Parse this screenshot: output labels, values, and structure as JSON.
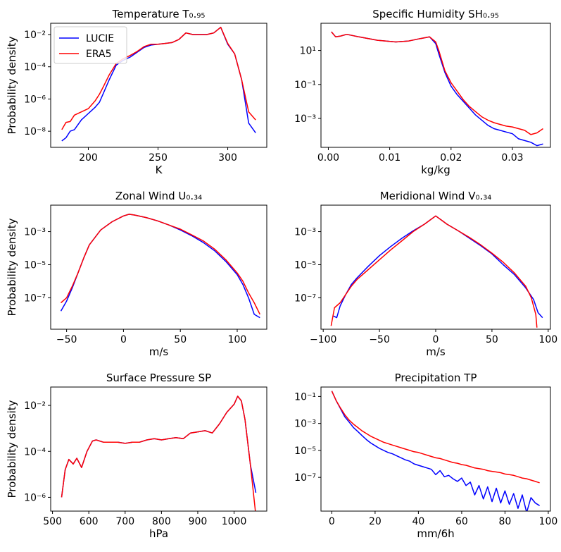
{
  "figure": {
    "legend_labels": [
      "LUCIE",
      "ERA5"
    ],
    "series_colors": {
      "LUCIE": "#0000ff",
      "ERA5": "#ff0000"
    }
  },
  "chart_data": [
    {
      "type": "line",
      "title": "Temperature T₀.₉₅",
      "xlabel": "K",
      "ylabel": "Probability density",
      "yscale": "log",
      "xlim": [
        173,
        328
      ],
      "ylim_exp": [
        -9,
        -1.3
      ],
      "xticks": [
        200,
        250,
        300
      ],
      "yticks_exp": [
        -8,
        -6,
        -4,
        -2
      ],
      "legend": "upper-left",
      "series": [
        {
          "name": "LUCIE",
          "color": "#0000ff",
          "x": [
            181,
            184,
            187,
            190,
            195,
            200,
            205,
            208,
            211,
            215,
            220,
            225,
            230,
            235,
            240,
            245,
            250,
            255,
            260,
            265,
            270,
            275,
            280,
            285,
            290,
            295,
            300,
            305,
            310,
            315,
            320
          ],
          "y_exp": [
            -8.6,
            -8.4,
            -8.0,
            -7.9,
            -7.3,
            -6.9,
            -6.5,
            -6.2,
            -5.6,
            -4.8,
            -3.9,
            -3.6,
            -3.4,
            -3.1,
            -2.8,
            -2.65,
            -2.6,
            -2.55,
            -2.5,
            -2.3,
            -1.9,
            -2.0,
            -2.0,
            -2.0,
            -1.9,
            -1.55,
            -2.6,
            -3.2,
            -4.8,
            -7.5,
            -8.1
          ]
        },
        {
          "name": "ERA5",
          "color": "#ff0000",
          "x": [
            181,
            184,
            187,
            190,
            195,
            200,
            205,
            208,
            211,
            215,
            220,
            225,
            230,
            235,
            240,
            245,
            250,
            255,
            260,
            265,
            270,
            275,
            280,
            285,
            290,
            295,
            300,
            305,
            310,
            315,
            320
          ],
          "y_exp": [
            -7.9,
            -7.45,
            -7.4,
            -7.0,
            -6.8,
            -6.6,
            -6.1,
            -5.7,
            -5.2,
            -4.5,
            -3.8,
            -3.5,
            -3.3,
            -3.05,
            -2.75,
            -2.6,
            -2.6,
            -2.55,
            -2.5,
            -2.3,
            -1.9,
            -2.0,
            -2.0,
            -2.0,
            -1.9,
            -1.55,
            -2.55,
            -3.2,
            -4.8,
            -6.8,
            -7.3
          ]
        }
      ]
    },
    {
      "type": "line",
      "title": "Specific Humidity SH₀.₉₅",
      "xlabel": "kg/kg",
      "ylabel": "",
      "yscale": "log",
      "xlim": [
        -0.0012,
        0.0362
      ],
      "ylim_exp": [
        -4.7,
        2.6
      ],
      "xticks": [
        0.0,
        0.01,
        0.02,
        0.03
      ],
      "xtick_labels": [
        "0.00",
        "0.01",
        "0.02",
        "0.03"
      ],
      "yticks_exp": [
        -3,
        -1,
        1
      ],
      "series": [
        {
          "name": "LUCIE",
          "color": "#0000ff",
          "x": [
            0.0005,
            0.0012,
            0.002,
            0.003,
            0.005,
            0.008,
            0.011,
            0.013,
            0.015,
            0.0165,
            0.0175,
            0.018,
            0.019,
            0.02,
            0.021,
            0.022,
            0.023,
            0.024,
            0.025,
            0.026,
            0.027,
            0.028,
            0.029,
            0.03,
            0.031,
            0.032,
            0.033,
            0.034,
            0.035
          ],
          "y_exp": [
            2.1,
            1.8,
            1.85,
            1.95,
            1.8,
            1.6,
            1.5,
            1.55,
            1.7,
            1.8,
            1.4,
            0.8,
            -0.3,
            -1.1,
            -1.6,
            -2.0,
            -2.4,
            -2.8,
            -3.1,
            -3.4,
            -3.6,
            -3.7,
            -3.8,
            -3.9,
            -4.2,
            -4.3,
            -4.4,
            -4.6,
            -4.5
          ]
        },
        {
          "name": "ERA5",
          "color": "#ff0000",
          "x": [
            0.0005,
            0.0012,
            0.002,
            0.003,
            0.005,
            0.008,
            0.011,
            0.013,
            0.015,
            0.0165,
            0.0175,
            0.018,
            0.019,
            0.02,
            0.021,
            0.022,
            0.023,
            0.024,
            0.025,
            0.026,
            0.027,
            0.028,
            0.029,
            0.03,
            0.031,
            0.032,
            0.033,
            0.034,
            0.035
          ],
          "y_exp": [
            2.1,
            1.8,
            1.85,
            1.95,
            1.8,
            1.6,
            1.5,
            1.55,
            1.7,
            1.8,
            1.5,
            1.0,
            -0.2,
            -0.9,
            -1.4,
            -1.9,
            -2.3,
            -2.6,
            -2.9,
            -3.1,
            -3.25,
            -3.35,
            -3.45,
            -3.5,
            -3.6,
            -3.7,
            -3.95,
            -3.85,
            -3.6
          ]
        }
      ]
    },
    {
      "type": "line",
      "title": "Zonal Wind U₀.₃₄",
      "xlabel": "m/s",
      "ylabel": "Probability density",
      "yscale": "log",
      "xlim": [
        -64,
        126
      ],
      "ylim_exp": [
        -8.9,
        -1.4
      ],
      "xticks": [
        -50,
        0,
        50,
        100
      ],
      "xtick_labels": [
        "−50",
        "0",
        "50",
        "100"
      ],
      "yticks_exp": [
        -7,
        -5,
        -3
      ],
      "series": [
        {
          "name": "LUCIE",
          "color": "#0000ff",
          "x": [
            -55,
            -50,
            -45,
            -40,
            -35,
            -30,
            -20,
            -10,
            0,
            5,
            10,
            20,
            30,
            40,
            50,
            60,
            70,
            80,
            90,
            100,
            105,
            110,
            115,
            120
          ],
          "y_exp": [
            -7.8,
            -7.2,
            -6.4,
            -5.5,
            -4.6,
            -3.8,
            -2.9,
            -2.4,
            -2.05,
            -1.95,
            -2.0,
            -2.15,
            -2.35,
            -2.6,
            -2.9,
            -3.25,
            -3.65,
            -4.15,
            -4.8,
            -5.6,
            -6.2,
            -7.0,
            -8.0,
            -8.2
          ]
        },
        {
          "name": "ERA5",
          "color": "#ff0000",
          "x": [
            -55,
            -50,
            -45,
            -40,
            -35,
            -30,
            -20,
            -10,
            0,
            5,
            10,
            20,
            30,
            40,
            50,
            60,
            70,
            80,
            90,
            100,
            105,
            110,
            115,
            120
          ],
          "y_exp": [
            -7.3,
            -7.0,
            -6.3,
            -5.5,
            -4.6,
            -3.8,
            -2.9,
            -2.4,
            -2.05,
            -1.95,
            -2.0,
            -2.15,
            -2.35,
            -2.6,
            -2.85,
            -3.2,
            -3.55,
            -4.05,
            -4.7,
            -5.5,
            -6.0,
            -6.7,
            -7.3,
            -8.0
          ]
        }
      ]
    },
    {
      "type": "line",
      "title": "Meridional Wind V₀.₃₄",
      "xlabel": "m/s",
      "ylabel": "",
      "yscale": "log",
      "xlim": [
        -102,
        102
      ],
      "ylim_exp": [
        -8.9,
        -1.4
      ],
      "xticks": [
        -100,
        -50,
        0,
        50,
        100
      ],
      "xtick_labels": [
        "−100",
        "−50",
        "0",
        "50",
        "100"
      ],
      "yticks_exp": [
        -7,
        -5,
        -3
      ],
      "series": [
        {
          "name": "LUCIE",
          "color": "#0000ff",
          "x": [
            -91,
            -88,
            -85,
            -80,
            -75,
            -70,
            -60,
            -50,
            -40,
            -30,
            -20,
            -10,
            -5,
            0,
            5,
            10,
            20,
            30,
            40,
            50,
            60,
            70,
            80,
            87,
            91,
            95
          ],
          "y_exp": [
            -8.1,
            -8.2,
            -7.5,
            -6.8,
            -6.2,
            -5.8,
            -5.1,
            -4.45,
            -3.9,
            -3.4,
            -2.95,
            -2.55,
            -2.3,
            -2.05,
            -2.3,
            -2.55,
            -2.95,
            -3.4,
            -3.85,
            -4.35,
            -5.0,
            -5.6,
            -6.4,
            -7.1,
            -7.9,
            -8.2
          ]
        },
        {
          "name": "ERA5",
          "color": "#ff0000",
          "x": [
            -93,
            -90,
            -85,
            -80,
            -75,
            -70,
            -60,
            -50,
            -40,
            -30,
            -20,
            -10,
            -5,
            0,
            5,
            10,
            20,
            30,
            40,
            50,
            60,
            70,
            80,
            85,
            89,
            90
          ],
          "y_exp": [
            -8.7,
            -7.6,
            -7.3,
            -6.8,
            -6.3,
            -5.9,
            -5.3,
            -4.7,
            -4.1,
            -3.55,
            -3.0,
            -2.55,
            -2.3,
            -2.05,
            -2.3,
            -2.55,
            -2.95,
            -3.35,
            -3.8,
            -4.3,
            -4.85,
            -5.5,
            -6.3,
            -7.0,
            -8.0,
            -8.8
          ]
        }
      ]
    },
    {
      "type": "line",
      "title": "Surface Pressure SP",
      "xlabel": "hPa",
      "ylabel": "Probability density",
      "yscale": "log",
      "xlim": [
        495,
        1090
      ],
      "ylim_exp": [
        -6.6,
        -1.2
      ],
      "xticks": [
        500,
        600,
        700,
        800,
        900,
        1000
      ],
      "yticks_exp": [
        -6,
        -4,
        -2
      ],
      "series": [
        {
          "name": "LUCIE",
          "color": "#0000ff",
          "x": [
            525,
            535,
            545,
            557,
            567,
            580,
            595,
            610,
            620,
            640,
            660,
            680,
            700,
            720,
            740,
            760,
            780,
            800,
            820,
            840,
            860,
            880,
            900,
            920,
            940,
            960,
            980,
            1000,
            1010,
            1020,
            1030,
            1045,
            1060
          ],
          "y_exp": [
            -6.0,
            -4.8,
            -4.35,
            -4.55,
            -4.3,
            -4.7,
            -4.0,
            -3.55,
            -3.5,
            -3.6,
            -3.6,
            -3.6,
            -3.65,
            -3.6,
            -3.6,
            -3.5,
            -3.45,
            -3.5,
            -3.45,
            -3.4,
            -3.45,
            -3.2,
            -3.15,
            -3.1,
            -3.2,
            -2.8,
            -2.3,
            -1.95,
            -1.6,
            -1.8,
            -2.6,
            -4.6,
            -5.8
          ]
        },
        {
          "name": "ERA5",
          "color": "#ff0000",
          "x": [
            525,
            535,
            545,
            557,
            567,
            580,
            595,
            610,
            620,
            640,
            660,
            680,
            700,
            720,
            740,
            760,
            780,
            800,
            820,
            840,
            860,
            880,
            900,
            920,
            940,
            960,
            980,
            1000,
            1010,
            1020,
            1030,
            1045,
            1060
          ],
          "y_exp": [
            -6.0,
            -4.8,
            -4.35,
            -4.55,
            -4.3,
            -4.7,
            -4.0,
            -3.55,
            -3.5,
            -3.6,
            -3.6,
            -3.6,
            -3.65,
            -3.6,
            -3.6,
            -3.5,
            -3.45,
            -3.5,
            -3.45,
            -3.4,
            -3.45,
            -3.2,
            -3.15,
            -3.1,
            -3.2,
            -2.8,
            -2.3,
            -1.95,
            -1.6,
            -1.8,
            -2.6,
            -4.6,
            -6.8
          ]
        }
      ]
    },
    {
      "type": "line",
      "title": "Precipitation TP",
      "xlabel": "mm/6h",
      "ylabel": "",
      "yscale": "log",
      "xlim": [
        -5,
        101
      ],
      "ylim_exp": [
        -9.5,
        -0.3
      ],
      "xticks": [
        0,
        20,
        40,
        60,
        80,
        100
      ],
      "yticks_exp": [
        -7,
        -5,
        -3,
        -1
      ],
      "series": [
        {
          "name": "LUCIE",
          "color": "#0000ff",
          "x": [
            0,
            2,
            4,
            6,
            8,
            10,
            12,
            14,
            16,
            18,
            20,
            22,
            24,
            26,
            28,
            30,
            32,
            34,
            36,
            38,
            40,
            42,
            44,
            46,
            48,
            50,
            52,
            54,
            56,
            58,
            60,
            62,
            64,
            66,
            68,
            70,
            72,
            74,
            76,
            78,
            80,
            82,
            84,
            86,
            88,
            90,
            92,
            94,
            96
          ],
          "y_exp": [
            -0.6,
            -1.3,
            -1.9,
            -2.5,
            -2.9,
            -3.3,
            -3.6,
            -3.9,
            -4.2,
            -4.45,
            -4.65,
            -4.85,
            -5.0,
            -5.15,
            -5.25,
            -5.4,
            -5.55,
            -5.7,
            -5.8,
            -6.0,
            -6.1,
            -6.2,
            -6.3,
            -6.4,
            -6.8,
            -6.5,
            -6.95,
            -6.85,
            -7.1,
            -7.3,
            -7.05,
            -7.6,
            -7.35,
            -8.3,
            -7.6,
            -8.6,
            -7.7,
            -8.8,
            -7.8,
            -8.9,
            -8.0,
            -9.0,
            -8.2,
            -9.3,
            -8.3,
            -9.6,
            -8.5,
            -8.9,
            -9.1
          ]
        },
        {
          "name": "ERA5",
          "color": "#ff0000",
          "x": [
            0,
            2,
            4,
            6,
            8,
            10,
            12,
            14,
            16,
            18,
            20,
            22,
            24,
            26,
            28,
            30,
            32,
            34,
            36,
            38,
            40,
            42,
            44,
            46,
            48,
            50,
            52,
            54,
            56,
            58,
            60,
            62,
            64,
            66,
            68,
            70,
            72,
            74,
            76,
            78,
            80,
            82,
            84,
            86,
            88,
            90,
            92,
            94,
            96
          ],
          "y_exp": [
            -0.6,
            -1.3,
            -1.85,
            -2.35,
            -2.75,
            -3.05,
            -3.3,
            -3.55,
            -3.75,
            -3.95,
            -4.1,
            -4.25,
            -4.4,
            -4.5,
            -4.6,
            -4.7,
            -4.8,
            -4.9,
            -5.0,
            -5.1,
            -5.15,
            -5.25,
            -5.35,
            -5.45,
            -5.55,
            -5.6,
            -5.7,
            -5.8,
            -5.9,
            -5.95,
            -6.05,
            -6.1,
            -6.2,
            -6.3,
            -6.35,
            -6.4,
            -6.5,
            -6.55,
            -6.6,
            -6.65,
            -6.75,
            -6.8,
            -6.85,
            -6.95,
            -7.05,
            -7.1,
            -7.2,
            -7.3,
            -7.4
          ]
        }
      ]
    }
  ]
}
